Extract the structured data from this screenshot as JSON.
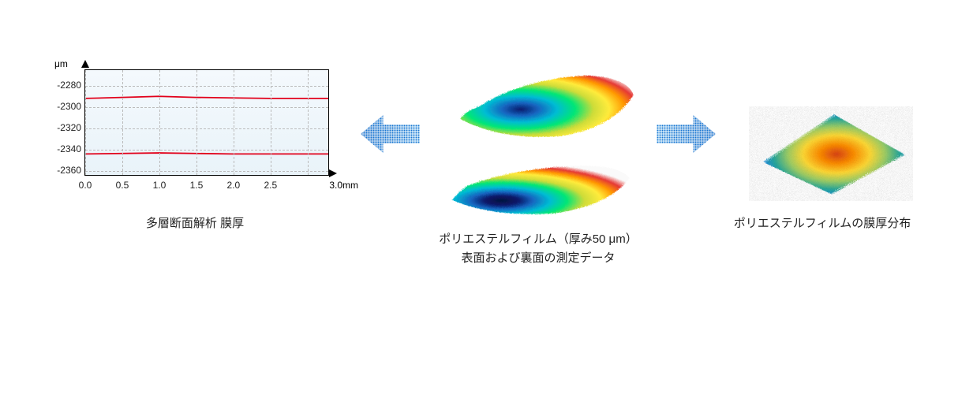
{
  "chart": {
    "type": "line",
    "y_unit": "μm",
    "x_unit": "3.0mm",
    "yticks": [
      -2280,
      -2300,
      -2320,
      -2340,
      -2360
    ],
    "ylim_top": -2265,
    "ylim_bottom": -2365,
    "xticks": [
      "0.0",
      "0.5",
      "1.0",
      "1.5",
      "2.0",
      "2.5"
    ],
    "xlim": [
      0.0,
      3.3
    ],
    "grid_color": "#bbbbbb",
    "border_color": "#000000",
    "bg_gradient_top": "#f4f9fd",
    "bg_gradient_bottom": "#e9f3f9",
    "series": [
      {
        "color": "#e2001a",
        "width": 1.8,
        "points": [
          [
            0.0,
            -2292
          ],
          [
            0.5,
            -2291
          ],
          [
            1.0,
            -2290
          ],
          [
            1.5,
            -2291
          ],
          [
            2.0,
            -2291.5
          ],
          [
            2.5,
            -2292
          ],
          [
            3.0,
            -2292
          ],
          [
            3.3,
            -2292
          ]
        ]
      },
      {
        "color": "#e2001a",
        "width": 1.8,
        "points": [
          [
            0.0,
            -2345
          ],
          [
            0.5,
            -2344.5
          ],
          [
            1.0,
            -2344
          ],
          [
            1.5,
            -2344.5
          ],
          [
            2.0,
            -2345
          ],
          [
            2.5,
            -2345
          ],
          [
            3.0,
            -2345
          ],
          [
            3.3,
            -2345
          ]
        ]
      }
    ],
    "caption": "多層断面解析 膜厚",
    "label_fontsize": 12,
    "caption_fontsize": 15
  },
  "center": {
    "caption_line1": "ポリエステルフィルム（厚み50 μm）",
    "caption_line2": "表面および裏面の測定データ",
    "rainbow_colors": [
      "#1a237e",
      "#1565c0",
      "#00acc1",
      "#00e676",
      "#cddc39",
      "#ffeb3b",
      "#ff9800",
      "#e53935",
      "#b71c1c"
    ],
    "surface_border": "#333333",
    "white_region": "#f5f5f5",
    "dark_speckle": "#0d1b4c"
  },
  "right": {
    "caption": "ポリエステルフィルムの膜厚分布",
    "fill_center": "#e53935",
    "fill_mid": "#ffca28",
    "fill_outer": "#43a047",
    "fill_edge": "#1565c0",
    "speckle": "#0b3d91"
  },
  "arrows": {
    "color_dark": "#0b5ab0",
    "color_light": "#6fb7e8",
    "dot_color": "#127a0"
  },
  "background": "#ffffff"
}
